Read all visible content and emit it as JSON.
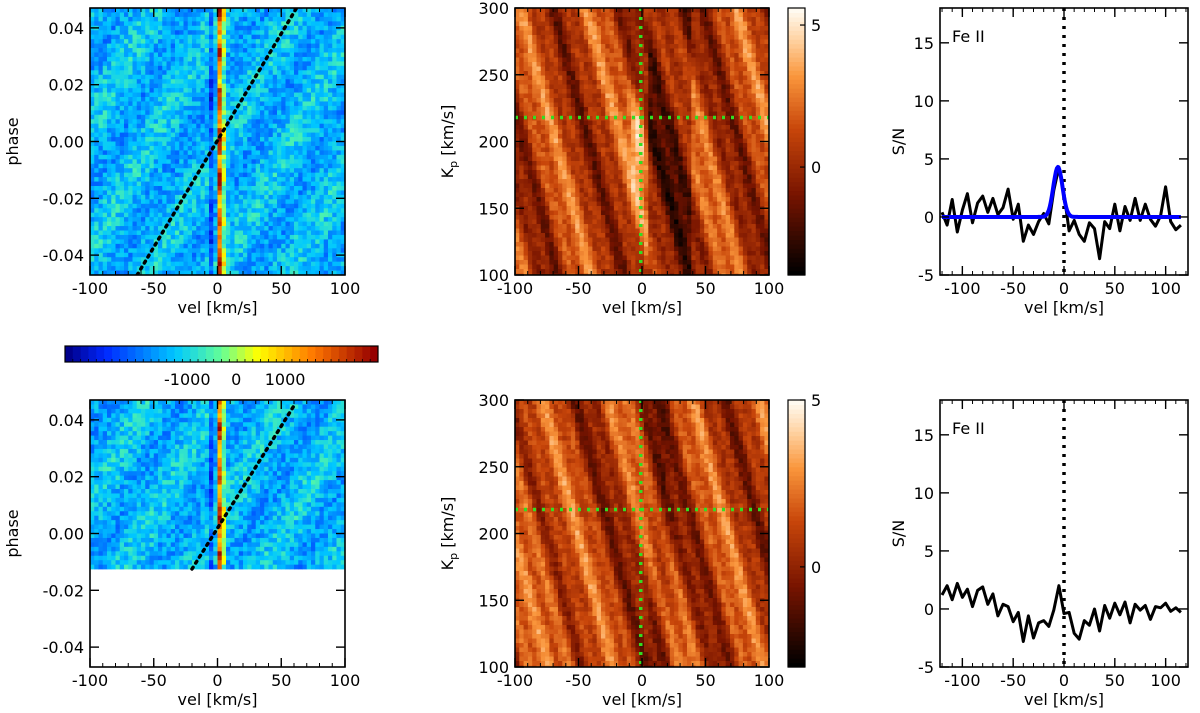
{
  "chart_data": [
    {
      "id": "top-trail",
      "type": "heatmap",
      "xlabel": "vel [km/s]",
      "ylabel": "phase",
      "xlim": [
        -100,
        100
      ],
      "ylim": [
        -0.047,
        0.047
      ],
      "xticks": [
        -100,
        -50,
        0,
        50,
        100
      ],
      "yticks": [
        -0.04,
        -0.02,
        0.0,
        0.02,
        0.04
      ],
      "ytick_labels": [
        "-0.04",
        "-0.02",
        "0.00",
        "0.02",
        "0.04"
      ],
      "data_phase_range": [
        -0.047,
        0.047
      ],
      "planet_trail_line": {
        "from": [
          -63,
          -0.047
        ],
        "to": [
          62,
          0.047
        ]
      },
      "stellar_residual_velocity": 2
    },
    {
      "id": "top-kp-map",
      "type": "heatmap",
      "xlabel": "vel [km/s]",
      "ylabel": "K",
      "ylabel_sub": "p",
      "ylabel_suffix": " [km/s]",
      "xlim": [
        -100,
        100
      ],
      "ylim": [
        100,
        300
      ],
      "xticks": [
        -100,
        -50,
        0,
        50,
        100
      ],
      "yticks": [
        100,
        150,
        200,
        250,
        300
      ],
      "peak_marker": {
        "vel": -1,
        "kp": 218
      },
      "colorbar": {
        "range": [
          -3.8,
          5.6
        ],
        "ticks": [
          0,
          5
        ]
      }
    },
    {
      "id": "top-sn",
      "type": "line",
      "label": "Fe II",
      "xlabel": "vel [km/s]",
      "ylabel": "S/N",
      "xlim": [
        -122,
        122
      ],
      "ylim": [
        -5,
        18
      ],
      "xticks": [
        -100,
        -50,
        0,
        50,
        100
      ],
      "yticks": [
        -5,
        0,
        5,
        10,
        15
      ],
      "vline": 0,
      "series": [
        {
          "name": "S/N",
          "color": "#000000",
          "x": [
            -120,
            -115,
            -110,
            -105,
            -100,
            -95,
            -90,
            -85,
            -80,
            -75,
            -70,
            -65,
            -60,
            -55,
            -50,
            -45,
            -40,
            -35,
            -30,
            -25,
            -20,
            -15,
            -10,
            -5,
            0,
            5,
            10,
            15,
            20,
            25,
            30,
            35,
            40,
            45,
            50,
            55,
            60,
            65,
            70,
            75,
            80,
            85,
            90,
            95,
            100,
            105,
            110,
            115
          ],
          "y": [
            0.4,
            -0.7,
            1.5,
            -1.3,
            0.6,
            2.0,
            -0.5,
            1.2,
            1.8,
            0.4,
            1.6,
            0.2,
            0.8,
            2.4,
            -0.2,
            1.1,
            -2.1,
            -0.7,
            -1.5,
            -0.4,
            0.3,
            -0.6,
            2.3,
            4.3,
            2.0,
            -1.2,
            -0.3,
            -1.5,
            -2.1,
            -0.5,
            -1.0,
            -3.6,
            -0.4,
            -1.0,
            1.1,
            -1.2,
            0.9,
            -0.3,
            1.6,
            -0.3,
            1.1,
            -0.2,
            -0.8,
            0.1,
            2.6,
            -0.4,
            -1.1,
            -0.7
          ]
        },
        {
          "name": "Gaussian fit",
          "color": "#0000ff",
          "amplitude": 4.3,
          "center": -6,
          "sigma": 4.5,
          "x_range": [
            -120,
            115
          ]
        }
      ]
    },
    {
      "id": "colorbar-horizontal",
      "type": "heatmap",
      "range": [
        -3500,
        2900
      ],
      "ticks": [
        -1000,
        0,
        1000
      ]
    },
    {
      "id": "bottom-trail",
      "type": "heatmap",
      "xlabel": "vel [km/s]",
      "ylabel": "phase",
      "xlim": [
        -100,
        100
      ],
      "ylim": [
        -0.047,
        0.047
      ],
      "xticks": [
        -100,
        -50,
        0,
        50,
        100
      ],
      "yticks": [
        -0.04,
        -0.02,
        0.0,
        0.02,
        0.04
      ],
      "ytick_labels": [
        "-0.04",
        "-0.02",
        "0.00",
        "0.02",
        "0.04"
      ],
      "data_phase_range": [
        -0.0125,
        0.047
      ],
      "planet_trail_line": {
        "from": [
          -20,
          -0.0125
        ],
        "to": [
          60,
          0.045
        ]
      },
      "stellar_residual_velocity": 2
    },
    {
      "id": "bottom-kp-map",
      "type": "heatmap",
      "xlabel": "vel [km/s]",
      "ylabel": "K",
      "ylabel_sub": "p",
      "ylabel_suffix": " [km/s]",
      "xlim": [
        -100,
        100
      ],
      "ylim": [
        100,
        300
      ],
      "xticks": [
        -100,
        -50,
        0,
        50,
        100
      ],
      "yticks": [
        100,
        150,
        200,
        250,
        300
      ],
      "peak_marker": {
        "vel": -1,
        "kp": 218
      },
      "colorbar": {
        "range": [
          -3.0,
          5.0
        ],
        "ticks": [
          0,
          5
        ]
      }
    },
    {
      "id": "bottom-sn",
      "type": "line",
      "label": "Fe II",
      "xlabel": "vel [km/s]",
      "ylabel": "S/N",
      "xlim": [
        -122,
        122
      ],
      "ylim": [
        -5,
        18
      ],
      "xticks": [
        -100,
        -50,
        0,
        50,
        100
      ],
      "yticks": [
        -5,
        0,
        5,
        10,
        15
      ],
      "vline": 0,
      "series": [
        {
          "name": "S/N",
          "color": "#000000",
          "x": [
            -120,
            -115,
            -110,
            -105,
            -100,
            -95,
            -90,
            -85,
            -80,
            -75,
            -70,
            -65,
            -60,
            -55,
            -50,
            -45,
            -40,
            -35,
            -30,
            -25,
            -20,
            -15,
            -10,
            -5,
            0,
            5,
            10,
            15,
            20,
            25,
            30,
            35,
            40,
            45,
            50,
            55,
            60,
            65,
            70,
            75,
            80,
            85,
            90,
            95,
            100,
            105,
            110,
            115
          ],
          "y": [
            1.2,
            2.0,
            0.8,
            2.2,
            1.0,
            1.7,
            0.2,
            1.6,
            1.9,
            0.4,
            1.3,
            -0.6,
            0.4,
            0.2,
            -1.1,
            -0.3,
            -2.8,
            -0.6,
            -2.5,
            -1.2,
            -1.0,
            -1.5,
            -0.1,
            2.0,
            -0.4,
            -0.3,
            -2.1,
            -2.6,
            -1.0,
            -1.4,
            0.0,
            -1.9,
            0.3,
            -0.8,
            0.5,
            -0.5,
            0.6,
            -1.2,
            0.4,
            -0.1,
            0.3,
            -0.9,
            0.2,
            0.1,
            0.5,
            -0.2,
            0.1,
            -0.3
          ]
        }
      ]
    }
  ]
}
